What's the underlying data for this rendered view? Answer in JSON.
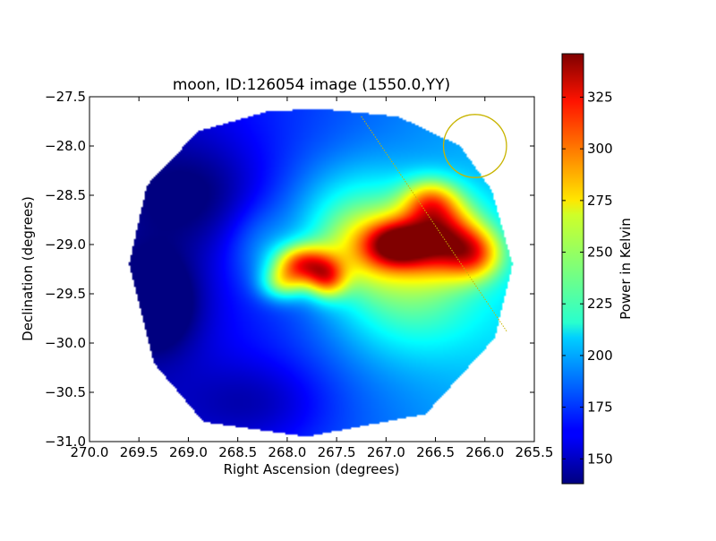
{
  "chart_data": {
    "type": "heatmap",
    "title": "moon, ID:126054 image (1550.0,YY)",
    "xlabel": "Right Ascension (degrees)",
    "ylabel": "Declination (degrees)",
    "xlim": [
      270.0,
      265.5
    ],
    "ylim": [
      -31.0,
      -27.5
    ],
    "x_inverted": true,
    "xticks": [
      "270.0",
      "269.5",
      "269.0",
      "268.5",
      "268.0",
      "267.5",
      "267.0",
      "266.5",
      "266.0",
      "265.5"
    ],
    "yticks": [
      "−27.5",
      "−28.0",
      "−28.5",
      "−29.0",
      "−29.5",
      "−30.0",
      "−30.5",
      "−31.0"
    ],
    "colorbar": {
      "label": "Power in Kelvin",
      "min": 138,
      "max": 346,
      "ticks": [
        150,
        175,
        200,
        225,
        250,
        275,
        300,
        325
      ],
      "colormap": "jet"
    },
    "footprint": [
      [
        267.68,
        -27.62
      ],
      [
        266.88,
        -27.7
      ],
      [
        266.25,
        -28.0
      ],
      [
        265.93,
        -28.45
      ],
      [
        265.72,
        -29.2
      ],
      [
        265.9,
        -29.95
      ],
      [
        266.6,
        -30.72
      ],
      [
        267.8,
        -30.95
      ],
      [
        268.85,
        -30.8
      ],
      [
        269.35,
        -30.2
      ],
      [
        269.6,
        -29.2
      ],
      [
        269.42,
        -28.4
      ],
      [
        268.9,
        -27.85
      ],
      [
        268.2,
        -27.65
      ]
    ],
    "background_level": 185,
    "sources": [
      {
        "ra": 266.45,
        "dec": -28.92,
        "amp": 115,
        "sx": 0.28,
        "sy": 0.26
      },
      {
        "ra": 266.9,
        "dec": -29.0,
        "amp": 95,
        "sx": 0.22,
        "sy": 0.16
      },
      {
        "ra": 266.55,
        "dec": -28.55,
        "amp": 60,
        "sx": 0.2,
        "sy": 0.16
      },
      {
        "ra": 266.1,
        "dec": -29.1,
        "amp": 70,
        "sx": 0.2,
        "sy": 0.18
      },
      {
        "ra": 267.85,
        "dec": -29.2,
        "amp": 105,
        "sx": 0.2,
        "sy": 0.14
      },
      {
        "ra": 267.6,
        "dec": -29.35,
        "amp": 75,
        "sx": 0.14,
        "sy": 0.14
      },
      {
        "ra": 267.25,
        "dec": -29.05,
        "amp": 55,
        "sx": 0.4,
        "sy": 0.3
      },
      {
        "ra": 268.05,
        "dec": -29.4,
        "amp": 55,
        "sx": 0.16,
        "sy": 0.12
      },
      {
        "ra": 266.8,
        "dec": -29.5,
        "amp": 45,
        "sx": 0.55,
        "sy": 0.45
      },
      {
        "ra": 267.3,
        "dec": -28.6,
        "amp": 30,
        "sx": 0.5,
        "sy": 0.35
      },
      {
        "ra": 268.3,
        "dec": -29.0,
        "amp": 20,
        "sx": 0.25,
        "sy": 0.3
      },
      {
        "ra": 269.3,
        "dec": -29.6,
        "amp": -40,
        "sx": 0.3,
        "sy": 0.35
      },
      {
        "ra": 268.9,
        "dec": -28.5,
        "amp": -25,
        "sx": 0.5,
        "sy": 0.4
      },
      {
        "ra": 268.3,
        "dec": -30.6,
        "amp": -20,
        "sx": 0.5,
        "sy": 0.3
      }
    ],
    "annotations": {
      "circle": {
        "ra": 266.1,
        "dec": -28.0,
        "radius_deg": 0.32,
        "color": "#c8b400"
      },
      "line": {
        "from": [
          267.25,
          -27.7
        ],
        "to": [
          265.78,
          -29.88
        ],
        "color": "#c8b400"
      }
    }
  }
}
